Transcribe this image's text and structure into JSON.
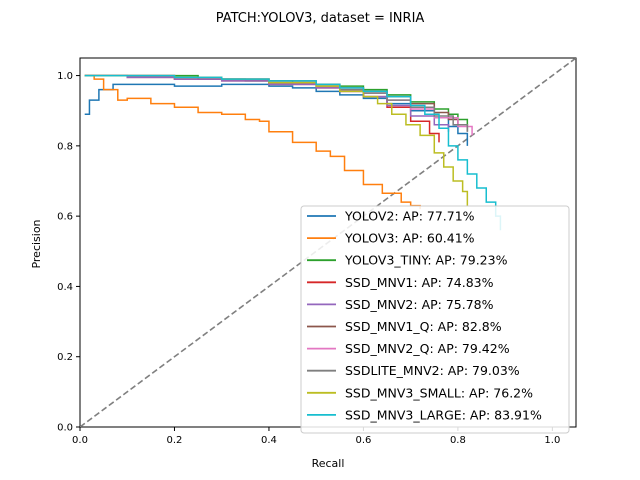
{
  "chart_data": {
    "type": "line",
    "title": "PATCH:YOLOV3, dataset = INRIA",
    "xlabel": "Recall",
    "ylabel": "Precision",
    "xlim": [
      0.0,
      1.05
    ],
    "ylim": [
      0.0,
      1.05
    ],
    "xticks": [
      "0.0",
      "0.2",
      "0.4",
      "0.6",
      "0.8",
      "1.0"
    ],
    "yticks": [
      "0.0",
      "0.2",
      "0.4",
      "0.6",
      "0.8",
      "1.0"
    ],
    "grid": false,
    "legend_position": "lower-right",
    "reference_line": {
      "style": "dashed",
      "color": "#808080",
      "from": [
        0,
        0
      ],
      "to": [
        1.05,
        1.05
      ]
    },
    "series": [
      {
        "name": "YOLOV2: AP: 77.71%",
        "color": "#1f77b4",
        "points": [
          [
            0.01,
            0.89
          ],
          [
            0.02,
            0.93
          ],
          [
            0.04,
            0.96
          ],
          [
            0.07,
            0.975
          ],
          [
            0.12,
            0.975
          ],
          [
            0.2,
            0.97
          ],
          [
            0.3,
            0.975
          ],
          [
            0.4,
            0.97
          ],
          [
            0.45,
            0.965
          ],
          [
            0.5,
            0.955
          ],
          [
            0.55,
            0.945
          ],
          [
            0.6,
            0.935
          ],
          [
            0.65,
            0.92
          ],
          [
            0.7,
            0.9
          ],
          [
            0.75,
            0.88
          ],
          [
            0.78,
            0.855
          ],
          [
            0.8,
            0.835
          ],
          [
            0.82,
            0.8
          ]
        ]
      },
      {
        "name": "YOLOV3: AP: 60.41%",
        "color": "#ff7f0e",
        "points": [
          [
            0.01,
            1.0
          ],
          [
            0.03,
            0.99
          ],
          [
            0.05,
            0.96
          ],
          [
            0.08,
            0.93
          ],
          [
            0.1,
            0.935
          ],
          [
            0.15,
            0.92
          ],
          [
            0.2,
            0.91
          ],
          [
            0.25,
            0.895
          ],
          [
            0.3,
            0.89
          ],
          [
            0.35,
            0.875
          ],
          [
            0.38,
            0.87
          ],
          [
            0.4,
            0.84
          ],
          [
            0.45,
            0.81
          ],
          [
            0.5,
            0.785
          ],
          [
            0.53,
            0.77
          ],
          [
            0.56,
            0.73
          ],
          [
            0.6,
            0.69
          ],
          [
            0.64,
            0.665
          ],
          [
            0.68,
            0.64
          ],
          [
            0.7,
            0.63
          ],
          [
            0.72,
            0.62
          ]
        ]
      },
      {
        "name": "YOLOV3_TINY: AP: 79.23%",
        "color": "#2ca02c",
        "points": [
          [
            0.01,
            1.0
          ],
          [
            0.1,
            1.0
          ],
          [
            0.2,
            1.0
          ],
          [
            0.25,
            0.99
          ],
          [
            0.35,
            0.985
          ],
          [
            0.45,
            0.98
          ],
          [
            0.5,
            0.975
          ],
          [
            0.55,
            0.97
          ],
          [
            0.6,
            0.96
          ],
          [
            0.65,
            0.945
          ],
          [
            0.7,
            0.925
          ],
          [
            0.75,
            0.905
          ],
          [
            0.78,
            0.89
          ],
          [
            0.8,
            0.875
          ],
          [
            0.82,
            0.86
          ]
        ]
      },
      {
        "name": "SSD_MNV1: AP: 74.83%",
        "color": "#d62728",
        "points": [
          [
            0.01,
            1.0
          ],
          [
            0.1,
            0.995
          ],
          [
            0.2,
            0.99
          ],
          [
            0.3,
            0.985
          ],
          [
            0.4,
            0.975
          ],
          [
            0.5,
            0.965
          ],
          [
            0.55,
            0.955
          ],
          [
            0.6,
            0.94
          ],
          [
            0.65,
            0.91
          ],
          [
            0.7,
            0.87
          ],
          [
            0.74,
            0.835
          ],
          [
            0.76,
            0.81
          ]
        ]
      },
      {
        "name": "SSD_MNV2: AP: 75.78%",
        "color": "#9467bd",
        "points": [
          [
            0.01,
            1.0
          ],
          [
            0.1,
            0.995
          ],
          [
            0.2,
            0.99
          ],
          [
            0.3,
            0.985
          ],
          [
            0.4,
            0.975
          ],
          [
            0.5,
            0.965
          ],
          [
            0.55,
            0.955
          ],
          [
            0.6,
            0.94
          ],
          [
            0.65,
            0.915
          ],
          [
            0.7,
            0.885
          ],
          [
            0.75,
            0.86
          ],
          [
            0.78,
            0.84
          ]
        ]
      },
      {
        "name": "SSD_MNV1_Q: AP: 82.8%",
        "color": "#8c564b",
        "points": [
          [
            0.01,
            1.0
          ],
          [
            0.1,
            1.0
          ],
          [
            0.2,
            0.995
          ],
          [
            0.3,
            0.99
          ],
          [
            0.4,
            0.985
          ],
          [
            0.5,
            0.975
          ],
          [
            0.55,
            0.965
          ],
          [
            0.6,
            0.955
          ],
          [
            0.65,
            0.94
          ],
          [
            0.7,
            0.92
          ],
          [
            0.75,
            0.895
          ],
          [
            0.78,
            0.875
          ],
          [
            0.8,
            0.86
          ],
          [
            0.82,
            0.84
          ]
        ]
      },
      {
        "name": "SSD_MNV2_Q: AP: 79.42%",
        "color": "#e377c2",
        "points": [
          [
            0.01,
            1.0
          ],
          [
            0.1,
            1.0
          ],
          [
            0.2,
            0.995
          ],
          [
            0.3,
            0.99
          ],
          [
            0.4,
            0.98
          ],
          [
            0.5,
            0.97
          ],
          [
            0.55,
            0.96
          ],
          [
            0.6,
            0.95
          ],
          [
            0.65,
            0.93
          ],
          [
            0.7,
            0.905
          ],
          [
            0.75,
            0.88
          ],
          [
            0.8,
            0.855
          ],
          [
            0.83,
            0.83
          ]
        ]
      },
      {
        "name": "SSDLITE_MNV2: AP: 79.03%",
        "color": "#7f7f7f",
        "points": [
          [
            0.01,
            1.0
          ],
          [
            0.1,
            1.0
          ],
          [
            0.2,
            0.995
          ],
          [
            0.3,
            0.99
          ],
          [
            0.4,
            0.98
          ],
          [
            0.5,
            0.97
          ],
          [
            0.55,
            0.96
          ],
          [
            0.6,
            0.95
          ],
          [
            0.65,
            0.93
          ],
          [
            0.7,
            0.91
          ],
          [
            0.75,
            0.885
          ],
          [
            0.79,
            0.86
          ],
          [
            0.82,
            0.84
          ]
        ]
      },
      {
        "name": "SSD_MNV3_SMALL: AP: 76.2%",
        "color": "#bcbd22",
        "points": [
          [
            0.01,
            1.0
          ],
          [
            0.1,
            1.0
          ],
          [
            0.2,
            0.995
          ],
          [
            0.3,
            0.99
          ],
          [
            0.4,
            0.98
          ],
          [
            0.5,
            0.97
          ],
          [
            0.55,
            0.955
          ],
          [
            0.6,
            0.94
          ],
          [
            0.63,
            0.92
          ],
          [
            0.66,
            0.89
          ],
          [
            0.69,
            0.86
          ],
          [
            0.72,
            0.83
          ],
          [
            0.75,
            0.78
          ],
          [
            0.77,
            0.74
          ],
          [
            0.79,
            0.7
          ],
          [
            0.81,
            0.67
          ],
          [
            0.82,
            0.63
          ]
        ]
      },
      {
        "name": "SSD_MNV3_LARGE: AP: 83.91%",
        "color": "#17becf",
        "points": [
          [
            0.01,
            1.0
          ],
          [
            0.1,
            1.0
          ],
          [
            0.2,
            0.995
          ],
          [
            0.3,
            0.99
          ],
          [
            0.4,
            0.985
          ],
          [
            0.5,
            0.975
          ],
          [
            0.55,
            0.965
          ],
          [
            0.6,
            0.955
          ],
          [
            0.65,
            0.94
          ],
          [
            0.7,
            0.915
          ],
          [
            0.73,
            0.89
          ],
          [
            0.76,
            0.85
          ],
          [
            0.78,
            0.8
          ],
          [
            0.8,
            0.76
          ],
          [
            0.82,
            0.72
          ],
          [
            0.84,
            0.68
          ],
          [
            0.86,
            0.64
          ],
          [
            0.88,
            0.6
          ],
          [
            0.89,
            0.56
          ]
        ]
      }
    ]
  }
}
